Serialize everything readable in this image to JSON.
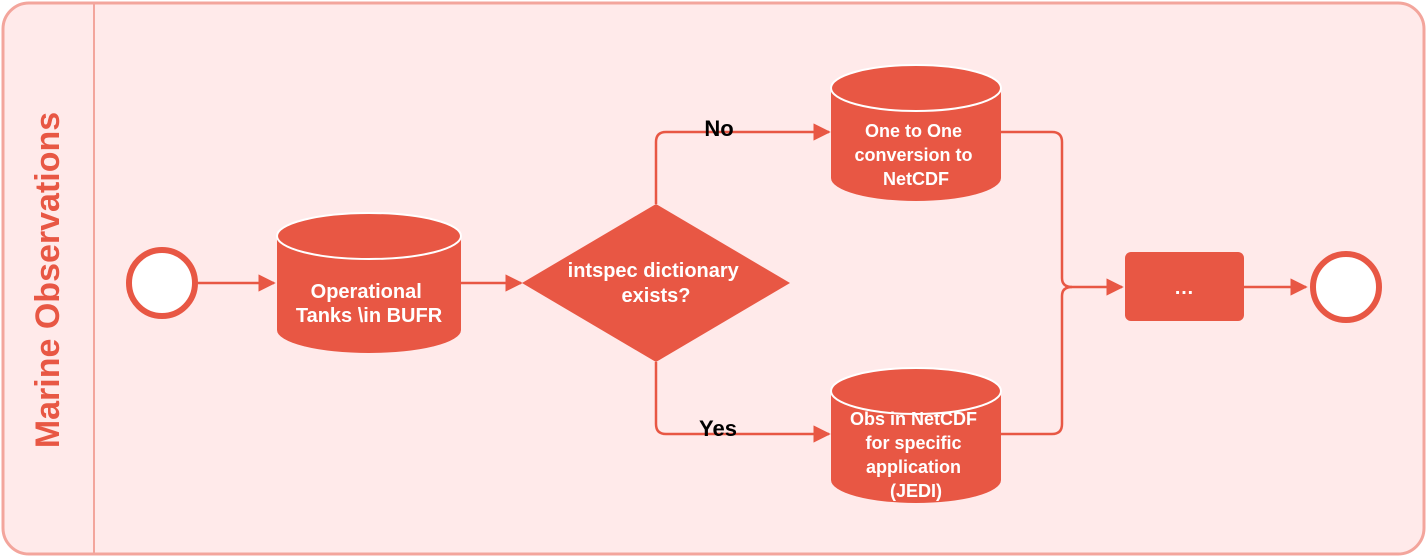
{
  "pool": {
    "title": "Marine Observations"
  },
  "nodes": {
    "operational_tanks": [
      "Operational",
      "Tanks \\in BUFR"
    ],
    "decision": [
      "intspec dictionary",
      "exists?"
    ],
    "one_to_one": [
      "One to One",
      "conversion to",
      "NetCDF"
    ],
    "obs_netcdf": [
      "Obs in NetCDF",
      "for specific",
      "application",
      "(JEDI)"
    ],
    "ellipsis_box": "…"
  },
  "edges": {
    "no_label": "No",
    "yes_label": "Yes"
  },
  "colors": {
    "accent": "#e85744",
    "pool_fill": "#ffeaea",
    "pool_stroke": "#f3a59c",
    "text_on_accent": "#ffffff",
    "edge_label": "#000000"
  }
}
